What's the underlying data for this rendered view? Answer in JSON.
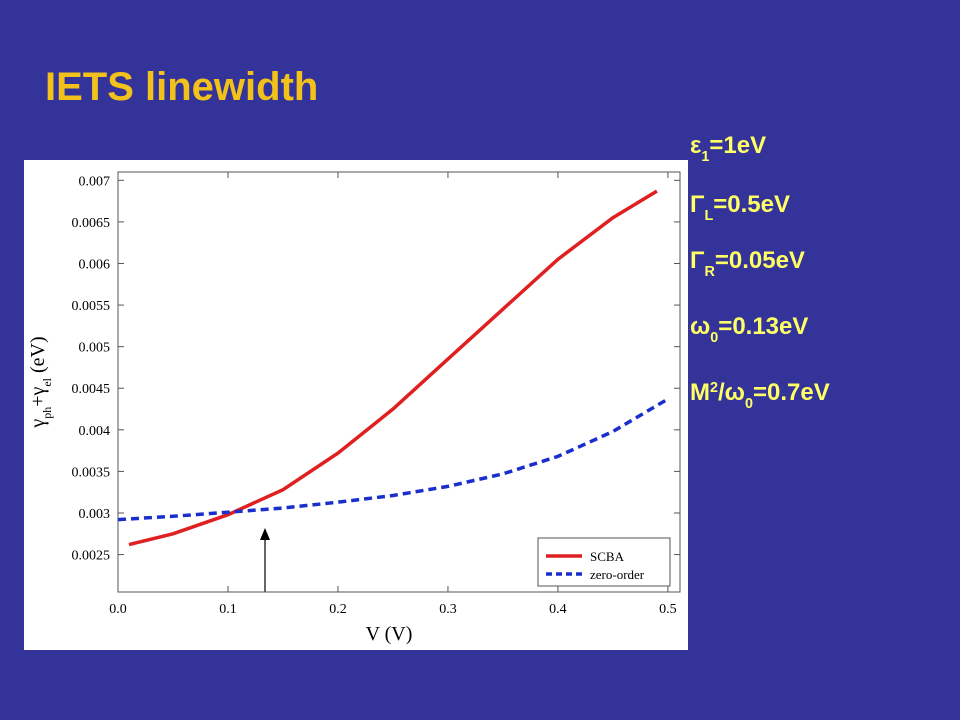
{
  "chart_data": {
    "type": "line",
    "title": "IETS linewidth",
    "xlabel": "V (V)",
    "ylabel_parts": [
      {
        "text": "γ"
      },
      {
        "text": "ph",
        "sub": true
      },
      {
        "text": "+γ"
      },
      {
        "text": "el",
        "sub": true
      },
      {
        "text": " (eV)"
      }
    ],
    "annotations": [
      [
        {
          "text": "ε"
        },
        {
          "text": "1",
          "sub": true
        },
        {
          "text": "=1eV"
        }
      ],
      [
        {
          "text": "Γ"
        },
        {
          "text": "L",
          "sub": true
        },
        {
          "text": "=0.5eV"
        }
      ],
      [
        {
          "text": "Γ"
        },
        {
          "text": "R",
          "sub": true
        },
        {
          "text": "=0.05eV"
        }
      ],
      [
        {
          "text": "ω"
        },
        {
          "text": "0",
          "sub": true
        },
        {
          "text": "=0.13eV"
        }
      ],
      [
        {
          "text": "M"
        },
        {
          "text": "2",
          "sup": true
        },
        {
          "text": "/ω"
        },
        {
          "text": "0",
          "sub": true
        },
        {
          "text": "=0.7eV"
        }
      ]
    ],
    "xlim": [
      0,
      0.511
    ],
    "ylim": [
      0.00205,
      0.0071
    ],
    "xticks": [
      {
        "value": 0,
        "label": "0.0"
      },
      0.1,
      0.2,
      0.3,
      0.4,
      0.5
    ],
    "yticks": [
      0.0025,
      0.003,
      0.0035,
      0.004,
      0.0045,
      0.005,
      0.0055,
      0.006,
      0.0065,
      0.007
    ],
    "legend": "lower right",
    "series": [
      {
        "name": "SCBA",
        "color": "#e02020",
        "style": "solid",
        "x": [
          0.01,
          0.05,
          0.1,
          0.15,
          0.2,
          0.25,
          0.3,
          0.35,
          0.4,
          0.45,
          0.49
        ],
        "values": [
          0.00262,
          0.00275,
          0.00298,
          0.00328,
          0.00372,
          0.00425,
          0.00485,
          0.00545,
          0.00605,
          0.00655,
          0.00687
        ]
      },
      {
        "name": "zero-order",
        "color": "#1a2ecc",
        "style": "dashed",
        "x": [
          0,
          0.05,
          0.1,
          0.15,
          0.2,
          0.25,
          0.3,
          0.35,
          0.4,
          0.45,
          0.5
        ],
        "values": [
          0.00292,
          0.00296,
          0.00301,
          0.00306,
          0.00313,
          0.00321,
          0.00332,
          0.00347,
          0.00368,
          0.00398,
          0.00437
        ]
      }
    ]
  }
}
